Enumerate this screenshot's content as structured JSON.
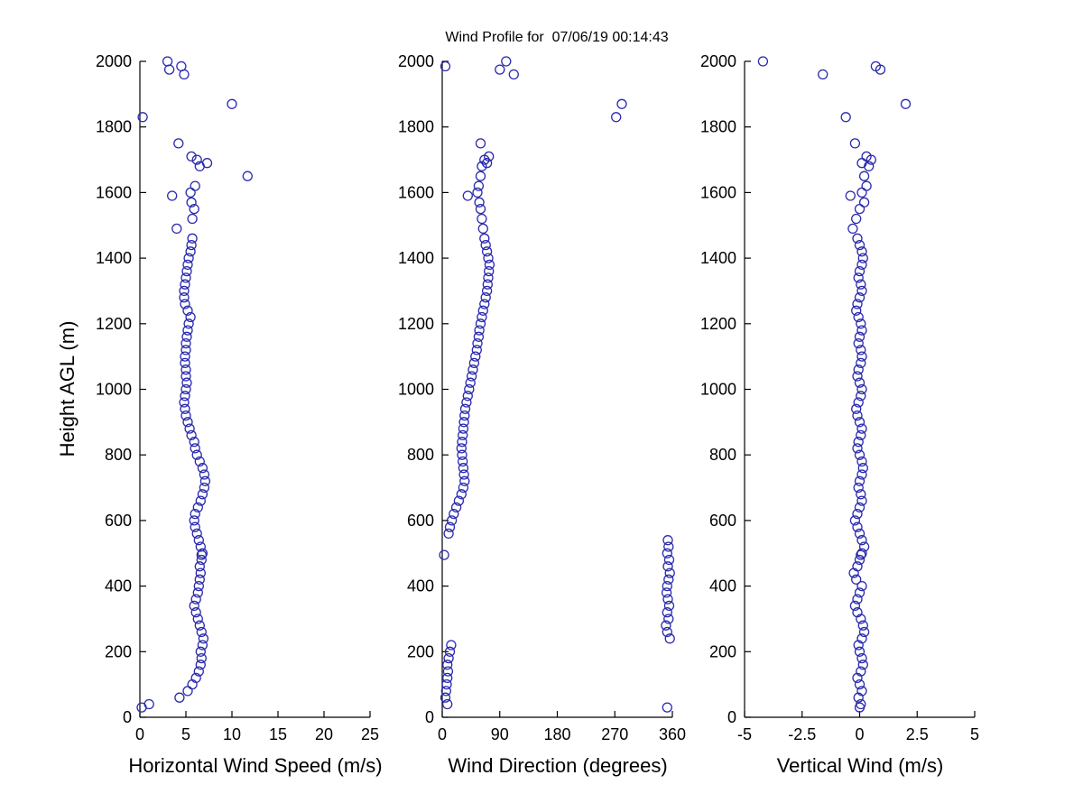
{
  "figure": {
    "background_color": "#ffffff",
    "axis_color": "#000000",
    "marker_color": "#2a2aae"
  },
  "chart_data": {
    "type": "scatter",
    "figure_title": "Wind Profile for  07/06/19 00:14:43",
    "ylabel": "Height AGL (m)",
    "ylim": [
      0,
      2000
    ],
    "yticks": [
      0,
      200,
      400,
      600,
      800,
      1000,
      1200,
      1400,
      1600,
      1800,
      2000
    ],
    "legend": "none",
    "grid": false,
    "marker": "open-circle",
    "heights_m": [
      30,
      40,
      60,
      80,
      100,
      120,
      140,
      160,
      180,
      200,
      220,
      240,
      260,
      280,
      300,
      320,
      340,
      360,
      380,
      400,
      420,
      440,
      460,
      480,
      495,
      500,
      520,
      540,
      560,
      580,
      600,
      620,
      640,
      660,
      680,
      700,
      720,
      740,
      760,
      780,
      800,
      820,
      840,
      860,
      880,
      900,
      920,
      940,
      960,
      980,
      1000,
      1020,
      1040,
      1060,
      1080,
      1100,
      1120,
      1140,
      1160,
      1180,
      1200,
      1220,
      1240,
      1260,
      1280,
      1300,
      1320,
      1340,
      1360,
      1380,
      1400,
      1420,
      1440,
      1460,
      1490,
      1520,
      1550,
      1570,
      1590,
      1600,
      1620,
      1650,
      1680,
      1690,
      1700,
      1710,
      1750,
      1830,
      1870,
      1960,
      1975,
      1985,
      2000
    ],
    "panels": [
      {
        "name": "horizontal-wind-speed",
        "xlabel": "Horizontal Wind Speed (m/s)",
        "xlim": [
          0,
          25
        ],
        "xticks": [
          0,
          5,
          10,
          15,
          20,
          25
        ],
        "values": [
          0.2,
          1.0,
          4.3,
          5.2,
          5.7,
          6.1,
          6.4,
          6.6,
          6.7,
          6.6,
          6.8,
          6.9,
          6.7,
          6.5,
          6.3,
          6.1,
          5.9,
          6.1,
          6.3,
          6.4,
          6.5,
          6.6,
          6.5,
          6.7,
          6.7,
          6.8,
          6.6,
          6.4,
          6.2,
          6.0,
          5.9,
          6.0,
          6.3,
          6.6,
          6.8,
          7.0,
          7.1,
          7.0,
          6.8,
          6.5,
          6.2,
          6.0,
          5.9,
          5.6,
          5.4,
          5.2,
          5.0,
          4.9,
          4.8,
          4.9,
          5.0,
          5.1,
          5.0,
          5.0,
          4.9,
          4.9,
          5.0,
          5.0,
          5.1,
          5.2,
          5.3,
          5.5,
          5.2,
          4.9,
          4.8,
          4.8,
          4.9,
          5.0,
          5.1,
          5.2,
          5.3,
          5.5,
          5.6,
          5.7,
          4.0,
          5.7,
          5.9,
          5.6,
          3.5,
          5.5,
          6.0,
          11.7,
          6.5,
          7.3,
          6.2,
          5.6,
          4.2,
          0.3,
          10.0,
          4.8,
          3.2,
          4.5,
          3.0
        ]
      },
      {
        "name": "wind-direction",
        "xlabel": "Wind Direction (degrees)",
        "xlim": [
          0,
          360
        ],
        "xticks": [
          0,
          90,
          180,
          270,
          360
        ],
        "values": [
          352,
          8,
          5,
          6,
          7,
          8,
          9,
          8,
          10,
          12,
          14,
          356,
          352,
          350,
          354,
          352,
          355,
          353,
          351,
          352,
          354,
          356,
          353,
          355,
          3,
          352,
          354,
          353,
          10,
          12,
          15,
          18,
          22,
          26,
          30,
          33,
          35,
          34,
          33,
          32,
          31,
          30,
          31,
          32,
          33,
          34,
          35,
          36,
          38,
          40,
          42,
          44,
          46,
          48,
          50,
          52,
          54,
          55,
          57,
          58,
          60,
          62,
          64,
          66,
          68,
          70,
          71,
          72,
          73,
          74,
          72,
          70,
          68,
          66,
          64,
          62,
          60,
          58,
          40,
          55,
          57,
          60,
          62,
          70,
          66,
          73,
          60,
          272,
          281,
          112,
          90,
          5,
          100
        ]
      },
      {
        "name": "vertical-wind",
        "xlabel": "Vertical Wind (m/s)",
        "xlim": [
          -5,
          5
        ],
        "xticks": [
          -5,
          -2.5,
          0,
          2.5,
          5
        ],
        "values": [
          0.0,
          0.05,
          -0.05,
          0.1,
          0.0,
          -0.1,
          0.05,
          0.15,
          0.1,
          0.0,
          -0.05,
          0.1,
          0.2,
          0.15,
          0.05,
          -0.1,
          -0.2,
          -0.1,
          0.0,
          0.1,
          -0.15,
          -0.25,
          -0.1,
          0.0,
          0.05,
          0.1,
          0.2,
          0.1,
          0.0,
          -0.1,
          -0.2,
          -0.1,
          0.0,
          0.1,
          0.05,
          -0.05,
          0.0,
          0.1,
          0.15,
          0.1,
          0.0,
          -0.1,
          -0.05,
          0.05,
          0.1,
          0.0,
          -0.1,
          -0.15,
          -0.05,
          0.05,
          0.1,
          0.0,
          -0.1,
          -0.05,
          0.05,
          0.1,
          0.05,
          -0.05,
          0.0,
          0.1,
          0.05,
          -0.05,
          -0.15,
          -0.1,
          0.0,
          0.1,
          0.05,
          -0.05,
          0.0,
          0.1,
          0.15,
          0.1,
          0.0,
          -0.1,
          -0.3,
          -0.15,
          0.0,
          0.2,
          -0.4,
          0.1,
          0.3,
          0.2,
          0.4,
          0.1,
          0.5,
          0.3,
          -0.2,
          -0.6,
          2.0,
          -1.6,
          0.9,
          0.7,
          -4.2
        ]
      }
    ]
  }
}
